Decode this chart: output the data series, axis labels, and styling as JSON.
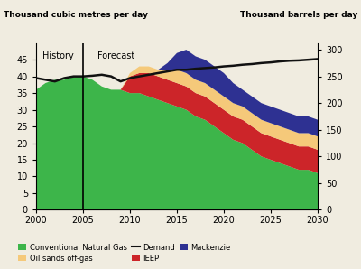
{
  "years": [
    2000,
    2001,
    2002,
    2003,
    2004,
    2005,
    2006,
    2007,
    2008,
    2009,
    2010,
    2011,
    2012,
    2013,
    2014,
    2015,
    2016,
    2017,
    2018,
    2019,
    2020,
    2021,
    2022,
    2023,
    2024,
    2025,
    2026,
    2027,
    2028,
    2029,
    2030
  ],
  "conv_gas": [
    36,
    38,
    39,
    39,
    40,
    40,
    39,
    37,
    36,
    36,
    35,
    35,
    34,
    33,
    32,
    31,
    30,
    28,
    27,
    25,
    23,
    21,
    20,
    18,
    16,
    15,
    14,
    13,
    12,
    12,
    11
  ],
  "ieep": [
    0,
    0,
    0,
    0,
    0,
    0,
    0,
    0,
    0,
    0,
    5,
    6,
    7,
    7,
    7,
    7,
    7,
    7,
    7,
    7,
    7,
    7,
    7,
    7,
    7,
    7,
    7,
    7,
    7,
    7,
    7
  ],
  "oil_sands": [
    0,
    0,
    0,
    0,
    0,
    0,
    0,
    0,
    0,
    0,
    1,
    2,
    2,
    2,
    3,
    4,
    4,
    4,
    4,
    4,
    4,
    4,
    4,
    4,
    4,
    4,
    4,
    4,
    4,
    4,
    4
  ],
  "mackenzie": [
    0,
    0,
    0,
    0,
    0,
    0,
    0,
    0,
    0,
    0,
    0,
    0,
    0,
    0,
    2,
    5,
    7,
    7,
    7,
    7,
    7,
    6,
    5,
    5,
    5,
    5,
    5,
    5,
    5,
    5,
    5
  ],
  "demand": [
    39.5,
    39.0,
    38.5,
    39.5,
    40.0,
    40.0,
    40.2,
    40.5,
    40.0,
    38.5,
    39.5,
    40.0,
    40.5,
    41.0,
    41.5,
    42.0,
    42.0,
    42.3,
    42.5,
    42.7,
    43.0,
    43.2,
    43.5,
    43.7,
    44.0,
    44.2,
    44.5,
    44.7,
    44.8,
    45.0,
    45.2
  ],
  "color_conv": "#3db54a",
  "color_ieep": "#cc2529",
  "color_oil_sands": "#f5c97a",
  "color_mackenzie": "#2e3192",
  "color_demand": "#111111",
  "ylim_left": [
    0,
    50
  ],
  "ylim_right": [
    0,
    312.5
  ],
  "ylabel_left": "Thousand cubic metres per day",
  "ylabel_right": "Thousand barrels per day",
  "history_year": 2005,
  "xticks": [
    2000,
    2005,
    2010,
    2015,
    2020,
    2025,
    2030
  ],
  "yticks_left": [
    0,
    5,
    10,
    15,
    20,
    25,
    30,
    35,
    40,
    45
  ],
  "yticks_right": [
    0,
    50,
    100,
    150,
    200,
    250,
    300
  ],
  "label_conv": "Conventional Natural Gas",
  "label_ieep": "IEEP",
  "label_oil_sands": "Oil sands off-gas",
  "label_mackenzie": "Mackenzie",
  "label_demand": "Demand",
  "history_label": "History",
  "forecast_label": "Forecast",
  "bg_color": "#f0ece0"
}
